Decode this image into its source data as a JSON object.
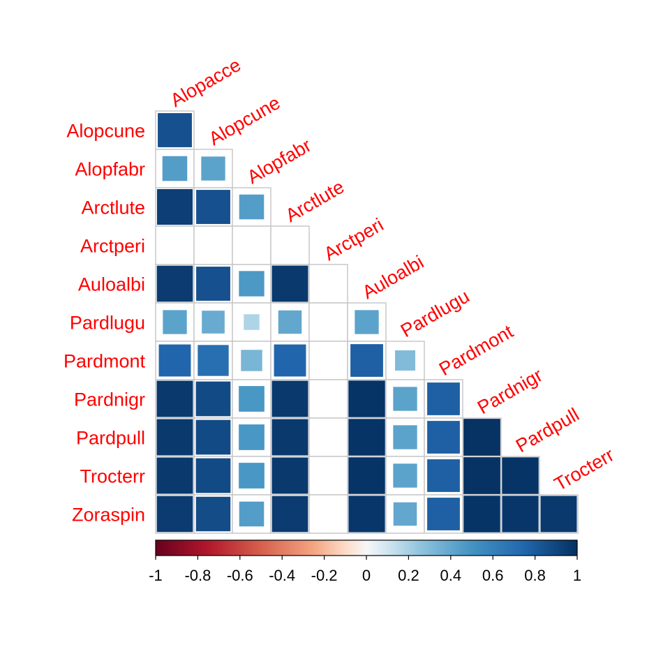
{
  "chart_data": {
    "type": "heatmap",
    "shape": "lower-triangular correlation matrix, square glyphs sized by magnitude",
    "column_labels": [
      "Alopacce",
      "Alopcune",
      "Alopfabr",
      "Arctlute",
      "Arctperi",
      "Auloalbi",
      "Pardlugu",
      "Pardmont",
      "Pardnigr",
      "Pardpull",
      "Trocterr"
    ],
    "row_labels": [
      "Alopcune",
      "Alopfabr",
      "Arctlute",
      "Arctperi",
      "Auloalbi",
      "Pardlugu",
      "Pardmont",
      "Pardnigr",
      "Pardpull",
      "Trocterr",
      "Zoraspin"
    ],
    "matrix": [
      [
        0.85
      ],
      [
        0.45,
        0.42
      ],
      [
        0.93,
        0.85,
        0.45
      ],
      [
        0.0,
        0.0,
        0.0,
        0.0
      ],
      [
        0.95,
        0.85,
        0.47,
        0.96,
        0.0
      ],
      [
        0.42,
        0.38,
        0.18,
        0.4,
        0.0,
        0.42
      ],
      [
        0.75,
        0.7,
        0.33,
        0.75,
        0.0,
        0.78,
        0.3
      ],
      [
        0.96,
        0.88,
        0.48,
        0.96,
        0.0,
        0.98,
        0.42,
        0.78
      ],
      [
        0.96,
        0.88,
        0.48,
        0.96,
        0.0,
        0.98,
        0.42,
        0.78,
        0.99
      ],
      [
        0.96,
        0.88,
        0.48,
        0.96,
        0.0,
        0.98,
        0.42,
        0.78,
        0.99,
        0.98
      ],
      [
        0.95,
        0.87,
        0.45,
        0.95,
        0.0,
        0.97,
        0.4,
        0.78,
        0.98,
        0.97,
        0.96
      ]
    ],
    "colorbar": {
      "range": [
        -1,
        1
      ],
      "tick_labels": [
        "-1",
        "-0.8",
        "-0.6",
        "-0.4",
        "-0.2",
        "0",
        "0.2",
        "0.4",
        "0.6",
        "0.8",
        "1"
      ],
      "placement": "bottom"
    },
    "colors": {
      "negative_end": "#67001f",
      "mid": "#f7f7f7",
      "positive_end": "#053061",
      "label_color": "#ff0000",
      "grid_color": "#c8c8c8"
    }
  }
}
